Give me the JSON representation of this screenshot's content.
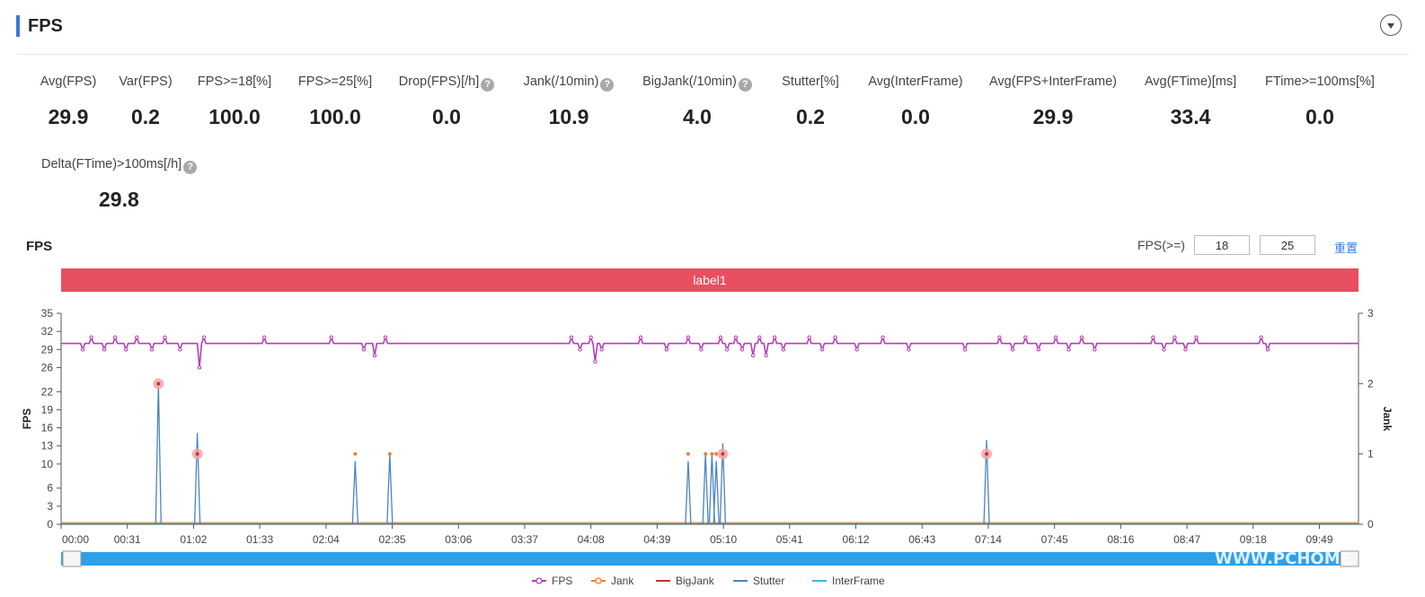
{
  "header": {
    "title": "FPS"
  },
  "metrics": [
    {
      "label": "Avg(FPS)",
      "value": "29.9",
      "help": false
    },
    {
      "label": "Var(FPS)",
      "value": "0.2",
      "help": false
    },
    {
      "label": "FPS>=18[%]",
      "value": "100.0",
      "help": false
    },
    {
      "label": "FPS>=25[%]",
      "value": "100.0",
      "help": false
    },
    {
      "label": "Drop(FPS)[/h]",
      "value": "0.0",
      "help": true
    },
    {
      "label": "Jank(/10min)",
      "value": "10.9",
      "help": true
    },
    {
      "label": "BigJank(/10min)",
      "value": "4.0",
      "help": true
    },
    {
      "label": "Stutter[%]",
      "value": "0.2",
      "help": false
    },
    {
      "label": "Avg(InterFrame)",
      "value": "0.0",
      "help": false
    },
    {
      "label": "Avg(FPS+InterFrame)",
      "value": "29.9",
      "help": false
    },
    {
      "label": "Avg(FTime)[ms]",
      "value": "33.4",
      "help": false
    },
    {
      "label": "FTime>=100ms[%]",
      "value": "0.0",
      "help": false
    },
    {
      "label": "Delta(FTime)>100ms[/h]",
      "value": "29.8",
      "help": true
    }
  ],
  "chart_panel": {
    "title": "FPS",
    "threshold_label": "FPS(>=)",
    "threshold_low": "18",
    "threshold_high": "25",
    "reset_label": "重置",
    "band_label": "label1",
    "help_glyph": "?"
  },
  "chart_data": {
    "type": "line",
    "x_tick_labels": [
      "00:00",
      "00:31",
      "01:02",
      "01:33",
      "02:04",
      "02:35",
      "03:06",
      "03:37",
      "04:08",
      "04:39",
      "05:10",
      "05:41",
      "06:12",
      "06:43",
      "07:14",
      "07:45",
      "08:16",
      "08:47",
      "09:18",
      "09:49"
    ],
    "y_ticks_left": [
      0,
      3,
      6,
      10,
      13,
      16,
      19,
      22,
      26,
      29,
      32,
      35
    ],
    "y_ticks_right": [
      0,
      1,
      2,
      3
    ],
    "ylabel": "FPS",
    "ylabel_right": "Jank",
    "ylim_left": [
      0,
      35
    ],
    "ylim_right": [
      0,
      3
    ],
    "x_range_sec": [
      0,
      600
    ],
    "fps_baseline": 30,
    "fps_dips": [
      {
        "t": 10,
        "v": 29
      },
      {
        "t": 14,
        "v": 31
      },
      {
        "t": 20,
        "v": 29
      },
      {
        "t": 25,
        "v": 31
      },
      {
        "t": 30,
        "v": 29
      },
      {
        "t": 35,
        "v": 31
      },
      {
        "t": 42,
        "v": 29
      },
      {
        "t": 48,
        "v": 31
      },
      {
        "t": 55,
        "v": 29
      },
      {
        "t": 64,
        "v": 26
      },
      {
        "t": 66,
        "v": 31
      },
      {
        "t": 94,
        "v": 31
      },
      {
        "t": 125,
        "v": 31
      },
      {
        "t": 140,
        "v": 29
      },
      {
        "t": 145,
        "v": 28
      },
      {
        "t": 150,
        "v": 31
      },
      {
        "t": 236,
        "v": 31
      },
      {
        "t": 240,
        "v": 29
      },
      {
        "t": 245,
        "v": 31
      },
      {
        "t": 247,
        "v": 27
      },
      {
        "t": 250,
        "v": 29
      },
      {
        "t": 268,
        "v": 31
      },
      {
        "t": 280,
        "v": 29
      },
      {
        "t": 290,
        "v": 31
      },
      {
        "t": 296,
        "v": 29
      },
      {
        "t": 305,
        "v": 31
      },
      {
        "t": 308,
        "v": 29
      },
      {
        "t": 312,
        "v": 31
      },
      {
        "t": 315,
        "v": 29
      },
      {
        "t": 320,
        "v": 28
      },
      {
        "t": 323,
        "v": 31
      },
      {
        "t": 326,
        "v": 28
      },
      {
        "t": 330,
        "v": 31
      },
      {
        "t": 334,
        "v": 29
      },
      {
        "t": 346,
        "v": 31
      },
      {
        "t": 352,
        "v": 29
      },
      {
        "t": 358,
        "v": 31
      },
      {
        "t": 368,
        "v": 29
      },
      {
        "t": 380,
        "v": 31
      },
      {
        "t": 392,
        "v": 29
      },
      {
        "t": 418,
        "v": 29
      },
      {
        "t": 434,
        "v": 31
      },
      {
        "t": 440,
        "v": 29
      },
      {
        "t": 446,
        "v": 31
      },
      {
        "t": 452,
        "v": 29
      },
      {
        "t": 460,
        "v": 31
      },
      {
        "t": 466,
        "v": 29
      },
      {
        "t": 472,
        "v": 31
      },
      {
        "t": 478,
        "v": 29
      },
      {
        "t": 505,
        "v": 31
      },
      {
        "t": 510,
        "v": 29
      },
      {
        "t": 515,
        "v": 31
      },
      {
        "t": 520,
        "v": 29
      },
      {
        "t": 525,
        "v": 31
      },
      {
        "t": 555,
        "v": 31
      },
      {
        "t": 558,
        "v": 29
      }
    ],
    "series": [
      {
        "name": "FPS",
        "color": "#b83db5",
        "marker": "circle"
      },
      {
        "name": "Jank",
        "color": "#f08030",
        "marker": "circle"
      },
      {
        "name": "BigJank",
        "color": "#c23531",
        "marker": "line"
      },
      {
        "name": "Stutter",
        "color": "#4a84c4",
        "marker": "line"
      },
      {
        "name": "InterFrame",
        "color": "#3fb8e5",
        "marker": "line"
      }
    ],
    "jank_events": [
      {
        "t": 45,
        "jank": 2,
        "big": true
      },
      {
        "t": 63,
        "jank": 1,
        "big": true
      },
      {
        "t": 136,
        "jank": 1,
        "big": false
      },
      {
        "t": 152,
        "jank": 1,
        "big": false
      },
      {
        "t": 290,
        "jank": 1,
        "big": false
      },
      {
        "t": 298,
        "jank": 1,
        "big": false
      },
      {
        "t": 301,
        "jank": 1,
        "big": false
      },
      {
        "t": 303,
        "jank": 1,
        "big": false
      },
      {
        "t": 306,
        "jank": 1,
        "big": true
      },
      {
        "t": 428,
        "jank": 1,
        "big": true
      }
    ],
    "stutter_spikes": [
      {
        "t": 45,
        "v": 2.0
      },
      {
        "t": 63,
        "v": 1.3
      },
      {
        "t": 136,
        "v": 0.9
      },
      {
        "t": 152,
        "v": 1.0
      },
      {
        "t": 290,
        "v": 0.9
      },
      {
        "t": 298,
        "v": 1.0
      },
      {
        "t": 301,
        "v": 1.0
      },
      {
        "t": 303,
        "v": 0.9
      },
      {
        "t": 306,
        "v": 1.15
      },
      {
        "t": 428,
        "v": 1.2
      }
    ],
    "grid": false,
    "legend_position": "bottom-center"
  },
  "watermark": "WWW.PCHOME"
}
